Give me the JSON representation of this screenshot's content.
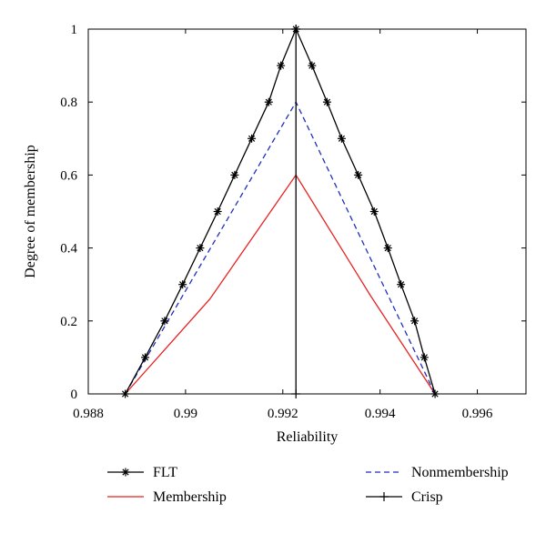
{
  "chart_data": {
    "type": "line",
    "xlabel": "Reliability",
    "ylabel": "Degree of membership",
    "xlim": [
      0.988,
      0.997
    ],
    "ylim": [
      0,
      1
    ],
    "xticks": [
      0.988,
      0.99,
      0.992,
      0.994,
      0.996
    ],
    "xtick_labels": [
      "0.988",
      "0.99",
      "0.992",
      "0.994",
      "0.996"
    ],
    "yticks": [
      0,
      0.2,
      0.4,
      0.6,
      0.8,
      1
    ],
    "ytick_labels": [
      "0",
      "0.2",
      "0.4",
      "0.6",
      "0.8",
      "1"
    ],
    "grid": false,
    "legend_position": "below",
    "series": [
      {
        "name": "FLT",
        "color": "#000000",
        "style": "solid",
        "marker": "asterisk",
        "points": [
          [
            0.98876,
            0
          ],
          [
            0.98917,
            0.1
          ],
          [
            0.98957,
            0.2
          ],
          [
            0.98994,
            0.3
          ],
          [
            0.9903,
            0.4
          ],
          [
            0.99066,
            0.5
          ],
          [
            0.99101,
            0.6
          ],
          [
            0.99136,
            0.7
          ],
          [
            0.99171,
            0.8
          ],
          [
            0.99196,
            0.9
          ],
          [
            0.99227,
            1.0
          ],
          [
            0.9926,
            0.9
          ],
          [
            0.99291,
            0.8
          ],
          [
            0.99321,
            0.7
          ],
          [
            0.99355,
            0.6
          ],
          [
            0.99388,
            0.5
          ],
          [
            0.99416,
            0.4
          ],
          [
            0.99443,
            0.3
          ],
          [
            0.99471,
            0.2
          ],
          [
            0.99491,
            0.1
          ],
          [
            0.99513,
            0
          ]
        ]
      },
      {
        "name": "Nonmembership",
        "color": "#1f2fbf",
        "style": "dashed",
        "marker": "none",
        "points": [
          [
            0.98876,
            0
          ],
          [
            0.99227,
            0.8
          ],
          [
            0.99513,
            0
          ]
        ]
      },
      {
        "name": "Membership",
        "color": "#e8211f",
        "style": "solid",
        "marker": "none",
        "points": [
          [
            0.98876,
            0
          ],
          [
            0.9905,
            0.26
          ],
          [
            0.99227,
            0.6
          ],
          [
            0.9938,
            0.27
          ],
          [
            0.99513,
            0
          ]
        ]
      },
      {
        "name": "Crisp",
        "color": "#000000",
        "style": "solid",
        "marker": "plus",
        "points": [
          [
            0.99227,
            0
          ],
          [
            0.99227,
            1
          ]
        ]
      }
    ]
  }
}
